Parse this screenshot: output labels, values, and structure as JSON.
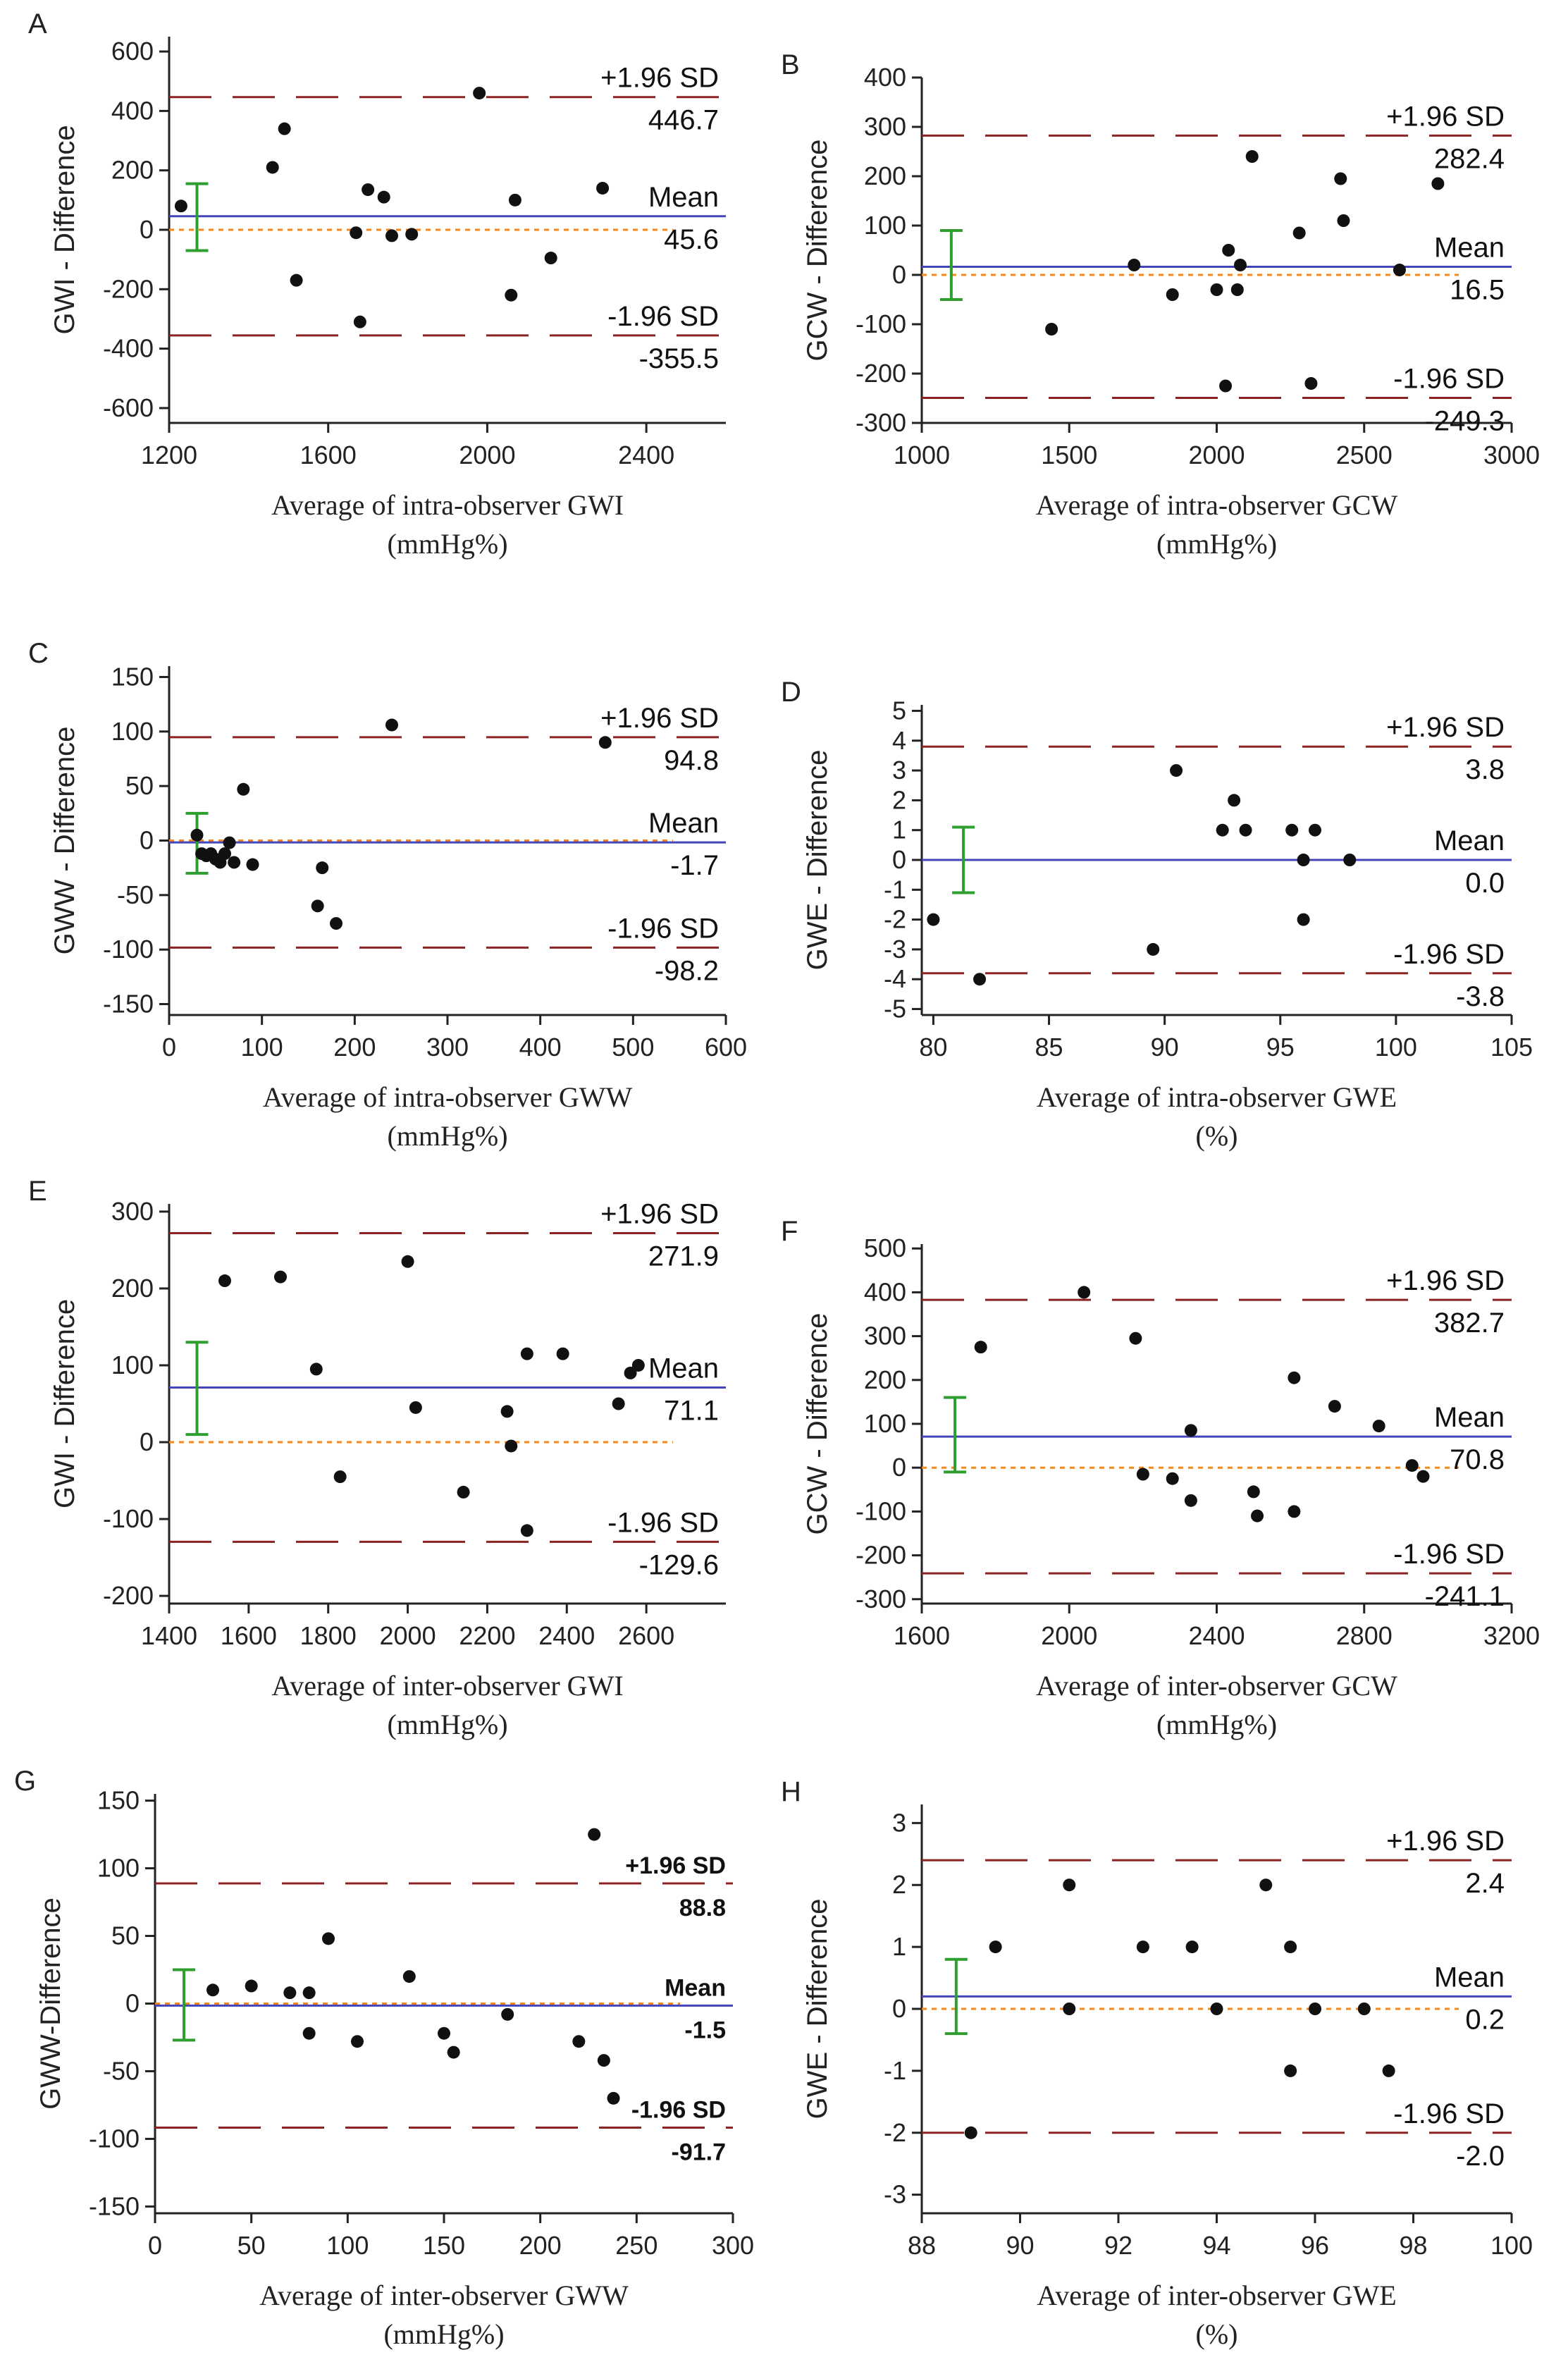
{
  "colors": {
    "mean_line": "#4444bb",
    "zero_line": "#f08a24",
    "limit_line": "#8b2323",
    "ci_bar": "#2e9e2e",
    "points": "#111111",
    "axis": "#222222"
  },
  "chart_data": [
    {
      "type": "scatter",
      "panel": "A",
      "ylabel": "GWI - Difference",
      "xlabel": "Average of intra-observer GWI",
      "xunit": "(mmHg%)",
      "xlim": [
        1200,
        2600
      ],
      "ylim": [
        -650,
        650
      ],
      "xticks": [
        1200,
        1600,
        2000,
        2400
      ],
      "yticks": [
        -600,
        -400,
        -200,
        0,
        200,
        400,
        600
      ],
      "mean": 45.6,
      "upper": 446.7,
      "lower": -355.5,
      "upper_label": "+1.96 SD",
      "mean_label": "Mean",
      "lower_label": "-1.96 SD",
      "upper_value": "446.7",
      "mean_value": "45.6",
      "lower_value": "-355.5",
      "ci_x": 1270,
      "ci": [
        -70,
        155
      ],
      "points": [
        [
          1230,
          80
        ],
        [
          1460,
          210
        ],
        [
          1490,
          340
        ],
        [
          1520,
          -170
        ],
        [
          1670,
          -10
        ],
        [
          1680,
          -310
        ],
        [
          1700,
          135
        ],
        [
          1740,
          110
        ],
        [
          1760,
          -20
        ],
        [
          1810,
          -15
        ],
        [
          1980,
          460
        ],
        [
          2060,
          -220
        ],
        [
          2070,
          100
        ],
        [
          2160,
          -95
        ],
        [
          2290,
          140
        ]
      ]
    },
    {
      "type": "scatter",
      "panel": "B",
      "ylabel": "GCW - Difference",
      "xlabel": "Average of intra-observer GCW",
      "xunit": "(mmHg%)",
      "xlim": [
        1000,
        3000
      ],
      "ylim": [
        -300,
        400
      ],
      "xticks": [
        1000,
        1500,
        2000,
        2500,
        3000
      ],
      "yticks": [
        -300,
        -200,
        -100,
        0,
        100,
        200,
        300,
        400
      ],
      "mean": 16.5,
      "upper": 282.4,
      "lower": -249.3,
      "upper_label": "+1.96 SD",
      "mean_label": "Mean",
      "lower_label": "-1.96 SD",
      "upper_value": "282.4",
      "mean_value": "16.5",
      "lower_value": "-249.3",
      "ci_x": 1100,
      "ci": [
        -50,
        90
      ],
      "points": [
        [
          1440,
          -110
        ],
        [
          1720,
          20
        ],
        [
          1850,
          -40
        ],
        [
          2000,
          -30
        ],
        [
          2030,
          -225
        ],
        [
          2040,
          50
        ],
        [
          2070,
          -30
        ],
        [
          2080,
          20
        ],
        [
          2120,
          240
        ],
        [
          2280,
          85
        ],
        [
          2320,
          -220
        ],
        [
          2420,
          195
        ],
        [
          2430,
          110
        ],
        [
          2620,
          10
        ],
        [
          2750,
          185
        ]
      ]
    },
    {
      "type": "scatter",
      "panel": "C",
      "ylabel": "GWW - Difference",
      "xlabel": "Average of intra-observer GWW",
      "xunit": "(mmHg%)",
      "xlim": [
        0,
        600
      ],
      "ylim": [
        -160,
        160
      ],
      "xticks": [
        0,
        100,
        200,
        300,
        400,
        500,
        600
      ],
      "yticks": [
        -150,
        -100,
        -50,
        0,
        50,
        100,
        150
      ],
      "mean": -1.7,
      "upper": 94.8,
      "lower": -98.2,
      "upper_label": "+1.96 SD",
      "mean_label": "Mean",
      "lower_label": "-1.96 SD",
      "upper_value": "94.8",
      "mean_value": "-1.7",
      "lower_value": "-98.2",
      "ci_x": 30,
      "ci": [
        -30,
        25
      ],
      "points": [
        [
          30,
          5
        ],
        [
          35,
          -12
        ],
        [
          40,
          -14
        ],
        [
          45,
          -12
        ],
        [
          50,
          -17
        ],
        [
          55,
          -20
        ],
        [
          60,
          -12
        ],
        [
          65,
          -2
        ],
        [
          70,
          -20
        ],
        [
          80,
          47
        ],
        [
          90,
          -22
        ],
        [
          160,
          -60
        ],
        [
          165,
          -25
        ],
        [
          180,
          -76
        ],
        [
          240,
          106
        ],
        [
          470,
          90
        ]
      ]
    },
    {
      "type": "scatter",
      "panel": "D",
      "ylabel": "GWE - Difference",
      "xlabel": "Average of intra-observer GWE",
      "xunit": "(%)",
      "xlim": [
        79.5,
        105
      ],
      "ylim": [
        -5.2,
        5.2
      ],
      "xticks": [
        80,
        85,
        90,
        95,
        100,
        105
      ],
      "yticks": [
        -5,
        -4,
        -3,
        -2,
        -1,
        0,
        1,
        2,
        3,
        4,
        5
      ],
      "mean": 0.0,
      "upper": 3.8,
      "lower": -3.8,
      "upper_label": "+1.96 SD",
      "mean_label": "Mean",
      "lower_label": "-1.96 SD",
      "upper_value": "3.8",
      "mean_value": "0.0",
      "lower_value": "-3.8",
      "ci_x": 81.3,
      "ci": [
        -1.1,
        1.1
      ],
      "points": [
        [
          80,
          -2
        ],
        [
          82,
          -4
        ],
        [
          89.5,
          -3
        ],
        [
          90.5,
          3
        ],
        [
          92.5,
          1
        ],
        [
          93,
          2
        ],
        [
          93.5,
          1
        ],
        [
          95.5,
          1
        ],
        [
          96,
          0
        ],
        [
          96,
          -2
        ],
        [
          96.5,
          1
        ],
        [
          98,
          0
        ]
      ]
    },
    {
      "type": "scatter",
      "panel": "E",
      "ylabel": "GWI - Difference",
      "xlabel": "Average of inter-observer GWI",
      "xunit": "(mmHg%)",
      "xlim": [
        1400,
        2800
      ],
      "ylim": [
        -210,
        310
      ],
      "xticks": [
        1400,
        1600,
        1800,
        2000,
        2200,
        2400,
        2600
      ],
      "yticks": [
        -200,
        -100,
        0,
        100,
        200,
        300
      ],
      "mean": 71.1,
      "upper": 271.9,
      "lower": -129.6,
      "upper_label": "+1.96 SD",
      "mean_label": "Mean",
      "lower_label": "-1.96 SD",
      "upper_value": "271.9",
      "mean_value": "71.1",
      "lower_value": "-129.6",
      "ci_x": 1470,
      "ci": [
        10,
        130
      ],
      "points": [
        [
          1540,
          210
        ],
        [
          1680,
          215
        ],
        [
          1770,
          95
        ],
        [
          1830,
          -45
        ],
        [
          2000,
          235
        ],
        [
          2020,
          45
        ],
        [
          2140,
          -65
        ],
        [
          2250,
          40
        ],
        [
          2260,
          -5
        ],
        [
          2300,
          -115
        ],
        [
          2300,
          115
        ],
        [
          2390,
          115
        ],
        [
          2530,
          50
        ],
        [
          2560,
          90
        ],
        [
          2580,
          100
        ]
      ]
    },
    {
      "type": "scatter",
      "panel": "F",
      "ylabel": "GCW - Difference",
      "xlabel": "Average of inter-observer GCW",
      "xunit": "(mmHg%)",
      "xlim": [
        1600,
        3200
      ],
      "ylim": [
        -310,
        510
      ],
      "xticks": [
        1600,
        2000,
        2400,
        2800,
        3200
      ],
      "yticks": [
        -300,
        -200,
        -100,
        0,
        100,
        200,
        300,
        400,
        500
      ],
      "mean": 70.8,
      "upper": 382.7,
      "lower": -241.1,
      "upper_label": "+1.96 SD",
      "mean_label": "Mean",
      "lower_label": "-1.96 SD",
      "upper_value": "382.7",
      "mean_value": "70.8",
      "lower_value": "-241.1",
      "ci_x": 1690,
      "ci": [
        -10,
        160
      ],
      "points": [
        [
          1760,
          275
        ],
        [
          2040,
          400
        ],
        [
          2180,
          295
        ],
        [
          2200,
          -15
        ],
        [
          2280,
          -25
        ],
        [
          2330,
          85
        ],
        [
          2330,
          -75
        ],
        [
          2500,
          -55
        ],
        [
          2510,
          -110
        ],
        [
          2610,
          205
        ],
        [
          2610,
          -100
        ],
        [
          2720,
          140
        ],
        [
          2840,
          95
        ],
        [
          2930,
          5
        ],
        [
          2960,
          -20
        ]
      ]
    },
    {
      "type": "scatter",
      "panel": "G",
      "bold_labels": true,
      "ylabel": "GWW-Difference",
      "xlabel": "Average of inter-observer GWW",
      "xunit": "(mmHg%)",
      "xlim": [
        0,
        300
      ],
      "ylim": [
        -155,
        155
      ],
      "xticks": [
        0,
        50,
        100,
        150,
        200,
        250,
        300
      ],
      "yticks": [
        -150,
        -100,
        -50,
        0,
        50,
        100,
        150
      ],
      "mean": -1.5,
      "upper": 88.8,
      "lower": -91.7,
      "upper_label": "+1.96 SD",
      "mean_label": "Mean",
      "lower_label": "-1.96 SD",
      "upper_value": "88.8",
      "mean_value": "-1.5",
      "lower_value": "-91.7",
      "ci_x": 15,
      "ci": [
        -27,
        25
      ],
      "points": [
        [
          30,
          10
        ],
        [
          50,
          13
        ],
        [
          70,
          8
        ],
        [
          80,
          -22
        ],
        [
          80,
          8
        ],
        [
          90,
          48
        ],
        [
          105,
          -28
        ],
        [
          132,
          20
        ],
        [
          150,
          -22
        ],
        [
          155,
          -36
        ],
        [
          183,
          -8
        ],
        [
          220,
          -28
        ],
        [
          228,
          125
        ],
        [
          233,
          -42
        ],
        [
          238,
          -70
        ]
      ]
    },
    {
      "type": "scatter",
      "panel": "H",
      "ylabel": "GWE - Difference",
      "xlabel": "Average of inter-observer GWE",
      "xunit": "(%)",
      "xlim": [
        88,
        100
      ],
      "ylim": [
        -3.3,
        3.3
      ],
      "xticks": [
        88,
        90,
        92,
        94,
        96,
        98,
        100
      ],
      "yticks": [
        -3,
        -2,
        -1,
        0,
        1,
        2,
        3
      ],
      "mean": 0.2,
      "upper": 2.4,
      "lower": -2.0,
      "upper_label": "+1.96 SD",
      "mean_label": "Mean",
      "lower_label": "-1.96 SD",
      "upper_value": "2.4",
      "mean_value": "0.2",
      "lower_value": "-2.0",
      "ci_x": 88.7,
      "ci": [
        -0.4,
        0.8
      ],
      "points": [
        [
          89,
          -2
        ],
        [
          89.5,
          1
        ],
        [
          91,
          2
        ],
        [
          91,
          0
        ],
        [
          92.5,
          1
        ],
        [
          93.5,
          1
        ],
        [
          94,
          0
        ],
        [
          95,
          2
        ],
        [
          95.5,
          1
        ],
        [
          95.5,
          -1
        ],
        [
          96,
          0
        ],
        [
          97,
          0
        ],
        [
          97.5,
          -1
        ]
      ]
    }
  ]
}
